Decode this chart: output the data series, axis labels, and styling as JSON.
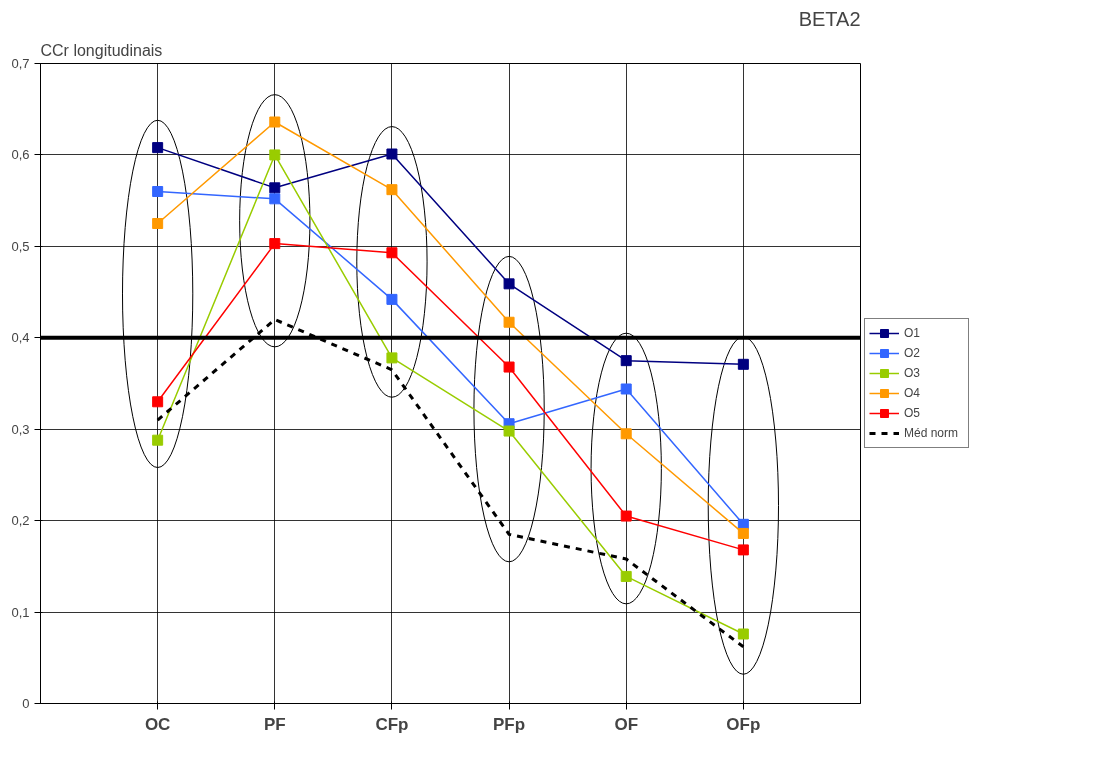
{
  "chart_data": {
    "type": "line",
    "title": "BETA2",
    "ylabel": "CCr longitudinais",
    "categories": [
      "OC",
      "PF",
      "CFp",
      "PFp",
      "OF",
      "OFp"
    ],
    "series": [
      {
        "name": "O1",
        "color": "#000080",
        "marker": "square",
        "values": [
          0.608,
          0.564,
          0.601,
          0.459,
          0.375,
          0.371
        ]
      },
      {
        "name": "O2",
        "color": "#3366ff",
        "marker": "square",
        "values": [
          0.56,
          0.552,
          0.442,
          0.306,
          0.344,
          0.196
        ]
      },
      {
        "name": "O3",
        "color": "#99cc00",
        "marker": "square",
        "values": [
          0.288,
          0.6,
          0.378,
          0.298,
          0.139,
          0.076
        ]
      },
      {
        "name": "O4",
        "color": "#ff9900",
        "marker": "square",
        "values": [
          0.525,
          0.636,
          0.562,
          0.417,
          0.295,
          0.186
        ]
      },
      {
        "name": "O5",
        "color": "#ff0000",
        "marker": "square",
        "values": [
          0.33,
          0.503,
          0.493,
          0.368,
          0.205,
          0.168
        ]
      },
      {
        "name": "Méd norm",
        "color": "#000000",
        "marker": "none",
        "line_style": "dashed",
        "values": [
          0.31,
          0.42,
          0.365,
          0.185,
          0.158,
          0.062
        ]
      }
    ],
    "ylim": [
      0,
      0.7
    ],
    "yticks": [
      0,
      {
        "value": 0.1,
        "label": "0,1"
      },
      {
        "value": 0.2,
        "label": "0,2"
      },
      {
        "value": 0.3,
        "label": "0,3"
      },
      {
        "value": 0.4,
        "label": "0,4"
      },
      {
        "value": 0.5,
        "label": "0,5"
      },
      {
        "value": 0.6,
        "label": "0,6"
      },
      {
        "value": 0.7,
        "label": "0,7"
      }
    ],
    "ref_lines": [
      {
        "axis": "y",
        "value": 0.4,
        "color": "#000000"
      }
    ],
    "grid": true,
    "legend": "right"
  }
}
